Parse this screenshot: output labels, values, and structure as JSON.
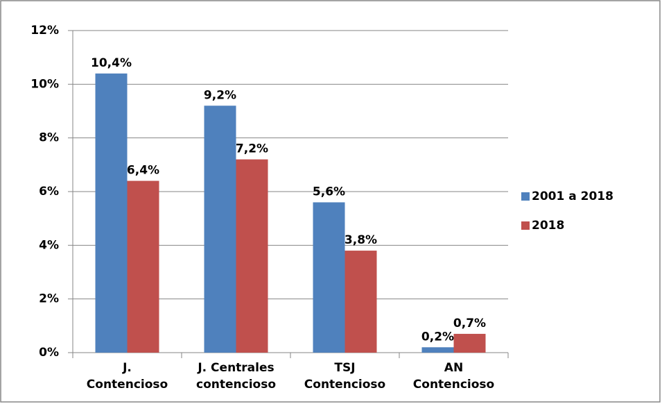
{
  "chart_data": {
    "type": "bar",
    "categories": [
      [
        "J.",
        "Contencioso"
      ],
      [
        "J. Centrales",
        "contencioso"
      ],
      [
        "TSJ",
        "Contencioso"
      ],
      [
        "AN",
        "Contencioso"
      ]
    ],
    "series": [
      {
        "name": "2001 a 2018",
        "color": "#4f81bd",
        "values": [
          10.4,
          9.2,
          5.6,
          0.2
        ],
        "value_labels": [
          "10,4%",
          "9,2%",
          "5,6%",
          "0,2%"
        ]
      },
      {
        "name": "2018",
        "color": "#c0504d",
        "values": [
          6.4,
          7.2,
          3.8,
          0.7
        ],
        "value_labels": [
          "6,4%",
          "7,2%",
          "3,8%",
          "0,7%"
        ]
      }
    ],
    "ylim": [
      0,
      12
    ],
    "yticks": [
      {
        "value": 0,
        "label": "0%"
      },
      {
        "value": 2,
        "label": "2%"
      },
      {
        "value": 4,
        "label": "4%"
      },
      {
        "value": 6,
        "label": "6%"
      },
      {
        "value": 8,
        "label": "8%"
      },
      {
        "value": 10,
        "label": "10%"
      },
      {
        "value": 12,
        "label": "12%"
      }
    ],
    "grid": true,
    "legend": "right"
  }
}
